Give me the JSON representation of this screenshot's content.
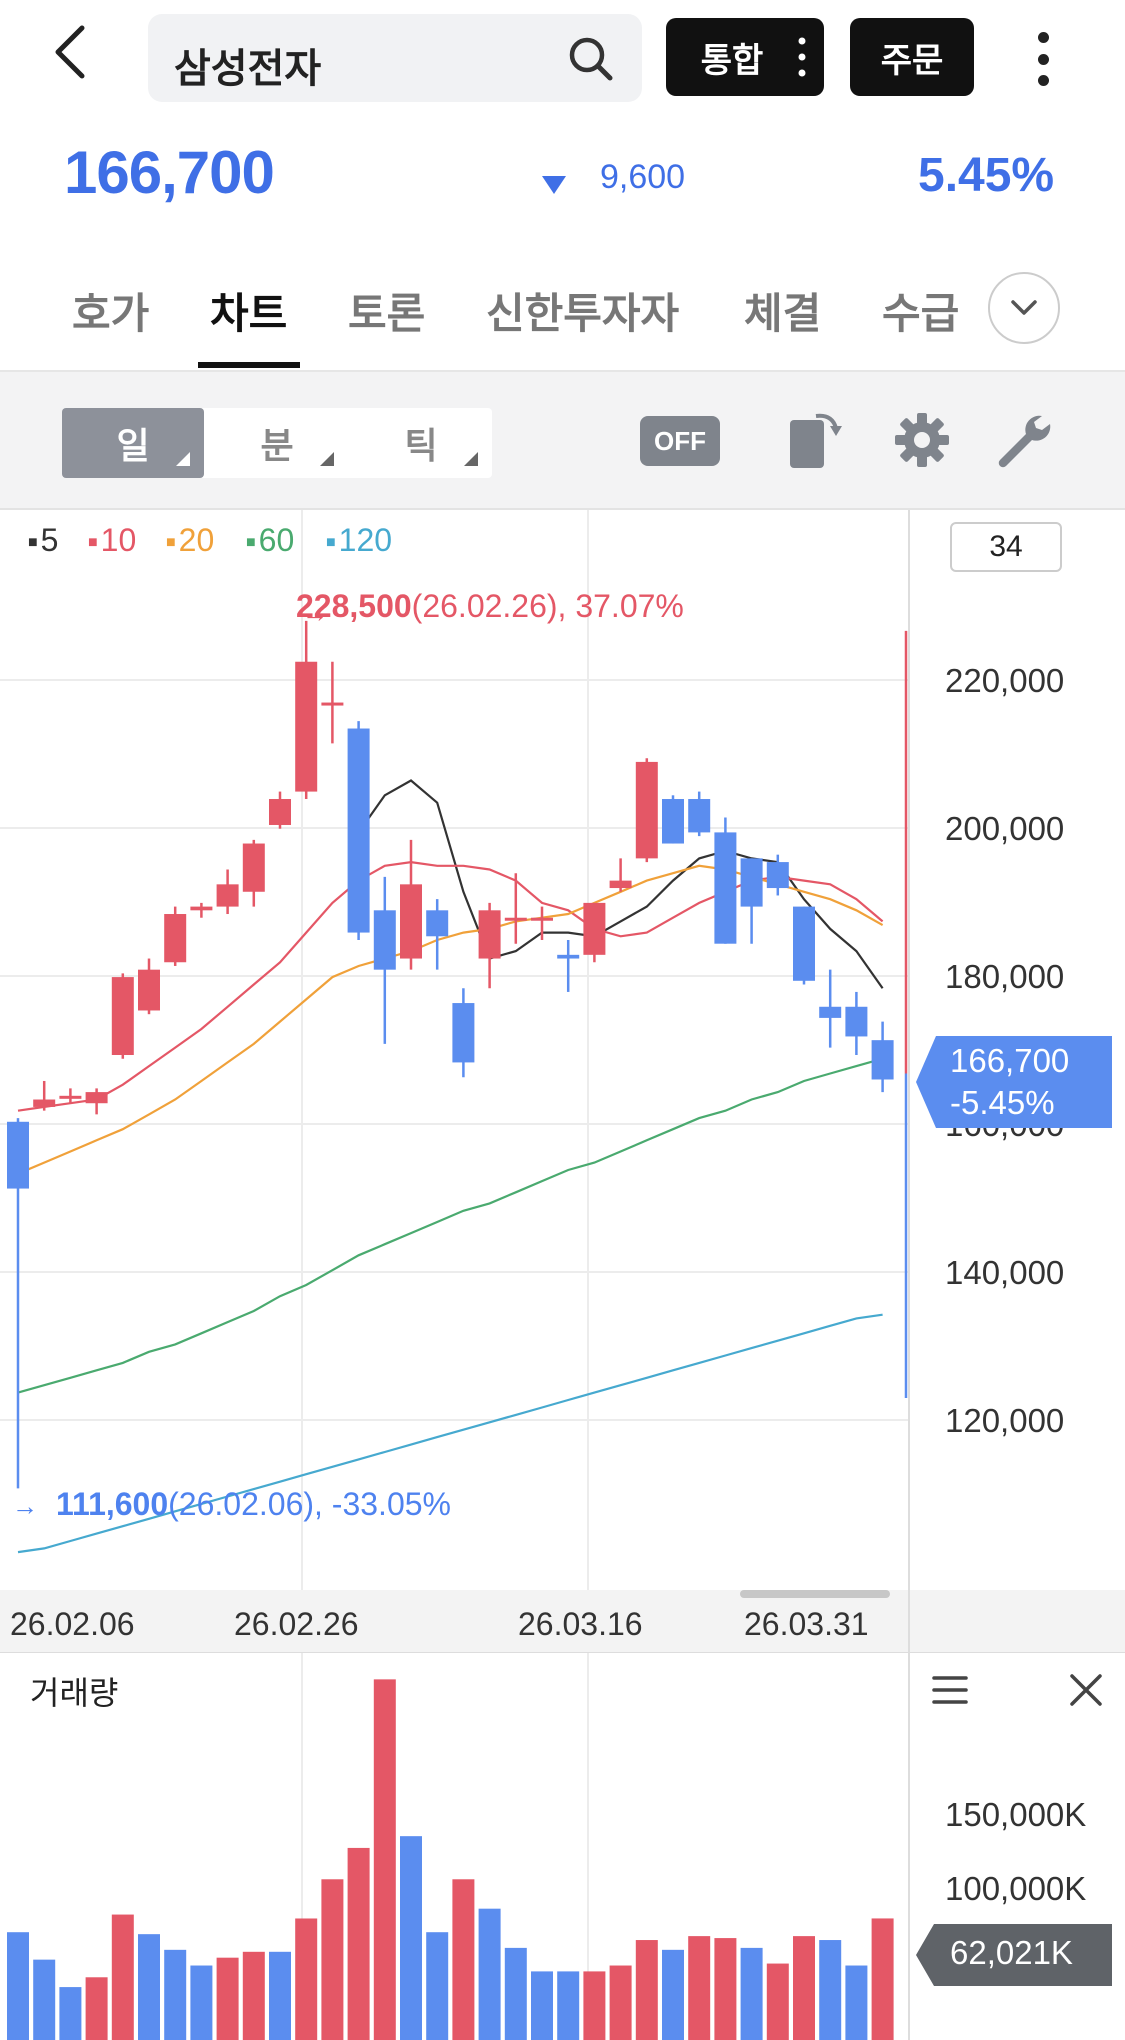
{
  "header": {
    "search_query": "삼성전자",
    "combined_label": "통합",
    "order_label": "주문"
  },
  "quote": {
    "price": "166,700",
    "change": "9,600",
    "change_pct": "5.45%",
    "direction": "down",
    "color": "#3f6fe6"
  },
  "tabs": [
    "호가",
    "차트",
    "토론",
    "신한투자자",
    "체결",
    "수급"
  ],
  "active_tab": "차트",
  "toolbar": {
    "periods": [
      "일",
      "분",
      "틱"
    ],
    "selected_period": "일",
    "toggle_label": "OFF"
  },
  "legend": {
    "items": [
      {
        "label": "5",
        "color": "#333333"
      },
      {
        "label": "10",
        "color": "#e45766"
      },
      {
        "label": "20",
        "color": "#f0a13a"
      },
      {
        "label": "60",
        "color": "#4aaa6f"
      },
      {
        "label": "120",
        "color": "#46a9cf"
      }
    ],
    "count_badge": "34"
  },
  "chart_data": {
    "type": "candlestick",
    "up_color": "#e45766",
    "down_color": "#5b8def",
    "y_ticks": [
      "220,000",
      "200,000",
      "180,000",
      "160,000",
      "140,000",
      "120,000"
    ],
    "ylim": [
      100000,
      232000
    ],
    "x_ticks": [
      "26.02.06",
      "26.02.26",
      "26.03.16",
      "26.03.31"
    ],
    "high_annotation": {
      "value": "228,500",
      "rest": "(26.02.26), 37.07%"
    },
    "low_annotation": {
      "value": "111,600",
      "rest": "(26.02.06), -33.05%"
    },
    "current": {
      "price": "166,700",
      "pct": "-5.45%"
    },
    "candles": [
      {
        "o": 161000,
        "h": 161500,
        "l": 111600,
        "c": 152000
      },
      {
        "o": 163000,
        "h": 166500,
        "l": 162500,
        "c": 164000
      },
      {
        "o": 164500,
        "h": 165500,
        "l": 163500,
        "c": 164500
      },
      {
        "o": 163500,
        "h": 165500,
        "l": 162000,
        "c": 165000
      },
      {
        "o": 170000,
        "h": 181000,
        "l": 169500,
        "c": 180500
      },
      {
        "o": 176000,
        "h": 183000,
        "l": 175500,
        "c": 181500
      },
      {
        "o": 182500,
        "h": 190000,
        "l": 182000,
        "c": 189000
      },
      {
        "o": 189500,
        "h": 190500,
        "l": 188500,
        "c": 190000
      },
      {
        "o": 190000,
        "h": 195000,
        "l": 189000,
        "c": 193000
      },
      {
        "o": 192000,
        "h": 199000,
        "l": 190000,
        "c": 198500
      },
      {
        "o": 201000,
        "h": 205500,
        "l": 200500,
        "c": 204500
      },
      {
        "o": 205500,
        "h": 228500,
        "l": 204500,
        "c": 223000
      },
      {
        "o": 217500,
        "h": 223000,
        "l": 212000,
        "c": 217500
      },
      {
        "o": 214000,
        "h": 215000,
        "l": 185500,
        "c": 186500
      },
      {
        "o": 189500,
        "h": 194000,
        "l": 171500,
        "c": 181500
      },
      {
        "o": 183000,
        "h": 199000,
        "l": 181500,
        "c": 193000
      },
      {
        "o": 189500,
        "h": 191000,
        "l": 181500,
        "c": 186000
      },
      {
        "o": 177000,
        "h": 179000,
        "l": 167000,
        "c": 169000
      },
      {
        "o": 183000,
        "h": 190500,
        "l": 179000,
        "c": 189500
      },
      {
        "o": 188500,
        "h": 194500,
        "l": 185000,
        "c": 188500
      },
      {
        "o": 188500,
        "h": 190000,
        "l": 185500,
        "c": 188500
      },
      {
        "o": 183500,
        "h": 185500,
        "l": 178500,
        "c": 183000
      },
      {
        "o": 183500,
        "h": 190500,
        "l": 182500,
        "c": 190500
      },
      {
        "o": 192500,
        "h": 196500,
        "l": 192000,
        "c": 193500
      },
      {
        "o": 196500,
        "h": 210000,
        "l": 196000,
        "c": 209500
      },
      {
        "o": 204500,
        "h": 205000,
        "l": 198500,
        "c": 198500
      },
      {
        "o": 204500,
        "h": 205500,
        "l": 199500,
        "c": 200000
      },
      {
        "o": 200000,
        "h": 202000,
        "l": 185000,
        "c": 185000
      },
      {
        "o": 196500,
        "h": 196500,
        "l": 185000,
        "c": 190000
      },
      {
        "o": 196000,
        "h": 197000,
        "l": 191500,
        "c": 192500
      },
      {
        "o": 190000,
        "h": 190000,
        "l": 179500,
        "c": 180000
      },
      {
        "o": 176500,
        "h": 181500,
        "l": 171000,
        "c": 175000
      },
      {
        "o": 176500,
        "h": 178500,
        "l": 170000,
        "c": 172500
      },
      {
        "o": 172000,
        "h": 174500,
        "l": 165000,
        "c": 166700
      }
    ],
    "ma": {
      "5": [
        null,
        null,
        null,
        null,
        null,
        null,
        null,
        null,
        null,
        null,
        null,
        null,
        null,
        200000,
        205000,
        207000,
        204000,
        192000,
        183000,
        184000,
        186500,
        186500,
        186000,
        188000,
        190000,
        193500,
        196500,
        197500,
        196500,
        196000,
        191000,
        187000,
        184000,
        179000
      ],
      "10": [
        162500,
        163000,
        163500,
        164000,
        166000,
        168500,
        171000,
        173500,
        176500,
        179500,
        182500,
        186500,
        190500,
        193500,
        195500,
        196000,
        195500,
        195500,
        195000,
        193500,
        190500,
        189500,
        187000,
        186000,
        186500,
        188500,
        190500,
        192000,
        193500,
        194000,
        193500,
        193000,
        191000,
        188000
      ],
      "20": [
        154000,
        155500,
        157000,
        158500,
        160000,
        162000,
        164000,
        166500,
        169000,
        171500,
        174500,
        177500,
        180500,
        182000,
        183000,
        184000,
        185500,
        186500,
        187000,
        188000,
        188500,
        189000,
        190500,
        192000,
        193500,
        194500,
        195500,
        195000,
        194000,
        193000,
        192000,
        191000,
        189500,
        187500
      ],
      "60": [
        124500,
        125500,
        126500,
        127500,
        128500,
        130000,
        131000,
        132500,
        134000,
        135500,
        137500,
        139000,
        141000,
        143000,
        144500,
        146000,
        147500,
        149000,
        150000,
        151500,
        153000,
        154500,
        155500,
        157000,
        158500,
        160000,
        161500,
        162500,
        164000,
        165000,
        166500,
        167500,
        168500,
        169500
      ],
      "120": [
        103000,
        103500,
        104500,
        105500,
        106500,
        107500,
        108500,
        109500,
        110500,
        111500,
        112500,
        113500,
        114500,
        115500,
        116500,
        117500,
        118500,
        119500,
        120500,
        121500,
        122500,
        123500,
        124500,
        125500,
        126500,
        127500,
        128500,
        129500,
        130500,
        131500,
        132500,
        133500,
        134500,
        135000
      ]
    }
  },
  "volume": {
    "title": "거래량",
    "ticks": [
      "150,000K",
      "100,000K"
    ],
    "current": "62,021K",
    "ylim": [
      0,
      190000
    ],
    "values": [
      55000,
      41000,
      27000,
      32000,
      64000,
      54000,
      46000,
      38000,
      42000,
      45000,
      45000,
      62000,
      82000,
      98000,
      184000,
      104000,
      55000,
      82000,
      67000,
      47000,
      35000,
      35000,
      35000,
      38000,
      51000,
      46000,
      53000,
      52000,
      47000,
      39000,
      53000,
      51000,
      38000,
      62021
    ],
    "up": [
      false,
      false,
      false,
      true,
      true,
      false,
      false,
      false,
      true,
      true,
      false,
      true,
      true,
      true,
      true,
      false,
      false,
      true,
      false,
      false,
      false,
      false,
      true,
      true,
      true,
      false,
      true,
      true,
      false,
      true,
      true,
      false,
      false,
      true
    ]
  }
}
